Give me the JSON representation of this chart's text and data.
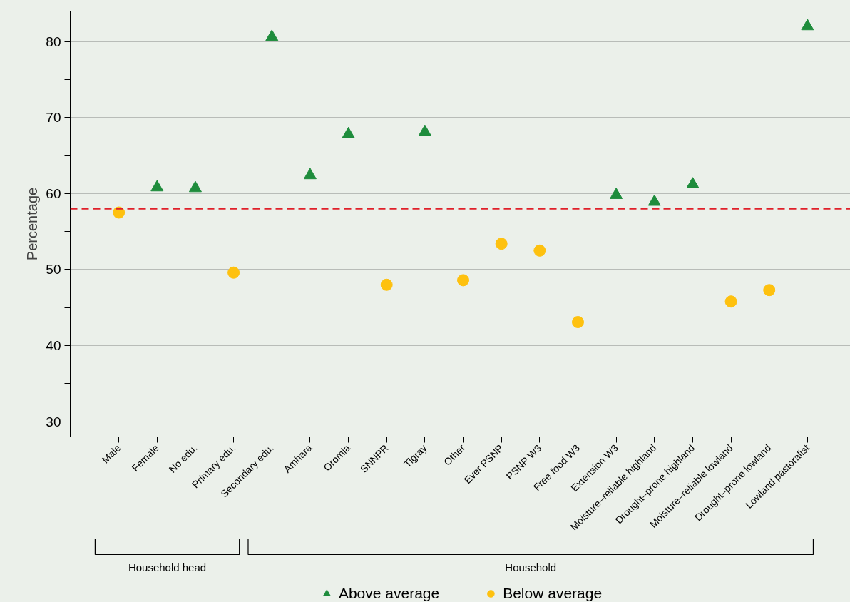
{
  "chart_data": {
    "type": "scatter",
    "ylabel": "Percentage",
    "categories": [
      "Male",
      "Female",
      "No edu.",
      "Primary edu.",
      "Secondary edu.",
      "Amhara",
      "Oromia",
      "SNNPR",
      "Tigray",
      "Other",
      "Ever PSNP",
      "PSNP W3",
      "Free food W3",
      "Extension W3",
      "Moisture–reliable highland",
      "Drought–prone highland",
      "Moisture–reliable lowland",
      "Drought–prone lowland",
      "Lowland pastoralist"
    ],
    "series": [
      {
        "name": "Above average",
        "color": "#1e8c3c",
        "marker": "triangle",
        "values": [
          null,
          60.8,
          60.7,
          null,
          80.6,
          62.4,
          67.8,
          null,
          68.1,
          null,
          null,
          null,
          null,
          59.8,
          58.9,
          61.2,
          null,
          null,
          82.0
        ]
      },
      {
        "name": "Below average",
        "color": "#fec10f",
        "marker": "circle",
        "values": [
          57.5,
          null,
          null,
          49.6,
          null,
          null,
          null,
          48.0,
          null,
          48.6,
          53.4,
          52.5,
          43.1,
          null,
          null,
          null,
          45.8,
          47.3,
          null
        ]
      }
    ],
    "ylim": [
      28,
      84
    ],
    "yticks": [
      30,
      {
        "value": 35,
        "label": null
      },
      40,
      {
        "value": 45,
        "label": null
      },
      50,
      {
        "value": 55,
        "label": null
      },
      60,
      {
        "value": 65,
        "label": null
      },
      70,
      {
        "value": 75,
        "label": null
      },
      80
    ],
    "ref_lines": [
      {
        "axis": "y",
        "value": 58.0,
        "color": "#e0202a",
        "line_style": "dashed"
      }
    ],
    "annotations": [
      "Household head",
      "Household"
    ],
    "grid": "y",
    "legend": "bottom"
  }
}
